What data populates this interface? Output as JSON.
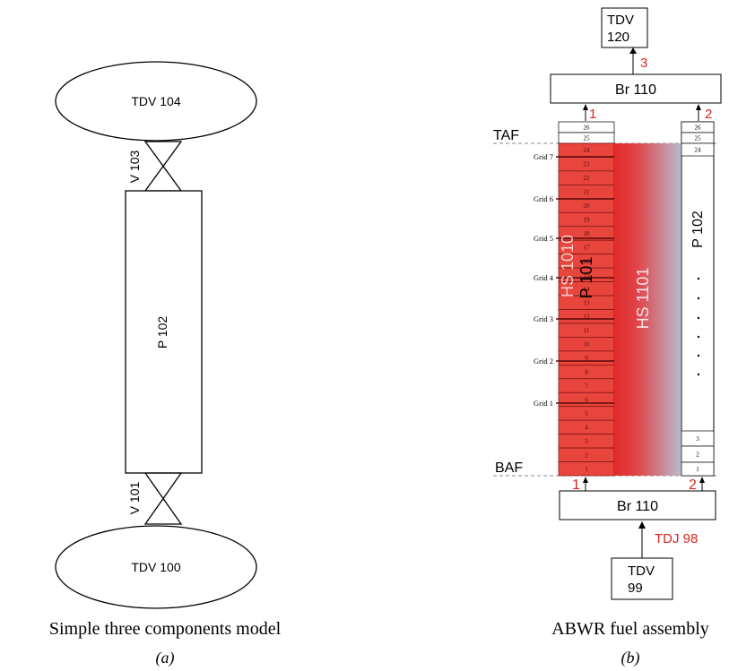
{
  "diagram_a": {
    "top_volume": "TDV 104",
    "top_valve": "V 103",
    "pipe": "P 102",
    "bottom_valve": "V 101",
    "bottom_volume": "TDV 100",
    "caption": "Simple three components model",
    "sub_caption": "(a)"
  },
  "diagram_b": {
    "top_tdv": "TDV\n120",
    "top_tdv_line1": "TDV",
    "top_tdv_line2": "120",
    "junction_top_label": "3",
    "top_branch": "Br 110",
    "p101_inlet_top": "1",
    "p102_inlet_top": "2",
    "taf_label": "TAF",
    "baf_label": "BAF",
    "hs_fuel": "HS 1010",
    "pipe_fuel": "P 101",
    "hs_wall": "HS 1101",
    "pipe_bypass": "P 102",
    "grids": [
      "Grid 7",
      "Grid 6",
      "Grid 5",
      "Grid 4",
      "Grid 3",
      "Grid 2",
      "Grid 1"
    ],
    "p101_cells": [
      "26",
      "25",
      "24",
      "23",
      "22",
      "21",
      "20",
      "19",
      "18",
      "17",
      "16",
      "15",
      "14",
      "13",
      "12",
      "11",
      "10",
      "9",
      "8",
      "7",
      "6",
      "5",
      "4",
      "3",
      "2",
      "1"
    ],
    "p102_cells_top": [
      "26",
      "25",
      "24"
    ],
    "p102_cells_bottom": [
      "3",
      "2",
      "1"
    ],
    "bottom_inlet_1": "1",
    "bottom_inlet_2": "2",
    "bottom_branch": "Br 110",
    "tdj_label": "TDJ 98",
    "bottom_tdv_line1": "TDV",
    "bottom_tdv_line2": "99",
    "caption": "ABWR fuel assembly",
    "sub_caption": "(b)"
  },
  "colors": {
    "fuel_red": "#e8453c",
    "label_red": "#d9251c",
    "wall_gradient_start": "#e02a2a",
    "wall_gradient_end": "#b8b8c8"
  }
}
